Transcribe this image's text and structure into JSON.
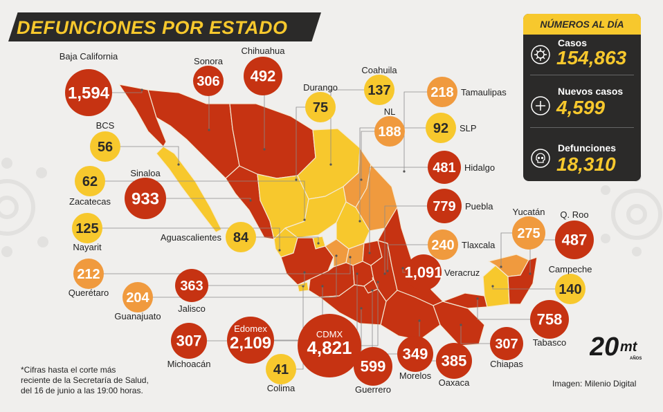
{
  "title": "DEFUNCIONES POR ESTADO",
  "panel": {
    "title": "NÚMEROS AL DÍA",
    "stats": [
      {
        "label": "Casos",
        "value": "154,863",
        "icon": "virus-icon"
      },
      {
        "label": "Nuevos casos",
        "value": "4,599",
        "icon": "plus-circle-icon"
      },
      {
        "label": "Defunciones",
        "value": "18,310",
        "icon": "skull-icon"
      }
    ]
  },
  "footnote": {
    "line1": "*Cifras hasta el corte más",
    "line2": "reciente de la Secretaría de Salud,",
    "line3": "del 16 de junio a las 19:00 horas."
  },
  "credit": "Imagen: Milenio Digital",
  "logo": {
    "number": "20",
    "brand": "mt",
    "sub": "AÑOS"
  },
  "colors": {
    "high": "#c63312",
    "medium": "#f09a3e",
    "low": "#f7c82d",
    "dark": "#2b2a29",
    "background": "#f0efed"
  },
  "chart_data": {
    "type": "bubble-map",
    "title": "DEFUNCIONES POR ESTADO",
    "categories": [
      "Baja California",
      "Sonora",
      "Chihuahua",
      "Durango",
      "Coahuila",
      "Tamaulipas",
      "NL",
      "SLP",
      "Hidalgo",
      "Puebla",
      "Tlaxcala",
      "Veracruz",
      "Yucatán",
      "Q. Roo",
      "Campeche",
      "Tabasco",
      "Chiapas",
      "Oaxaca",
      "Morelos",
      "Guerrero",
      "CDMX",
      "Colima",
      "Edomex",
      "Michoacán",
      "Jalisco",
      "Guanajuato",
      "Querétaro",
      "Nayarit",
      "Zacatecas",
      "Aguascalientes",
      "Sinaloa",
      "BCS"
    ],
    "values": [
      1594,
      306,
      492,
      75,
      137,
      218,
      188,
      92,
      481,
      779,
      240,
      1091,
      275,
      487,
      140,
      758,
      307,
      385,
      349,
      599,
      4821,
      41,
      2109,
      307,
      363,
      204,
      212,
      125,
      62,
      84,
      933,
      56
    ],
    "display_values": [
      "1,594",
      "306",
      "492",
      "75",
      "137",
      "218",
      "188",
      "92",
      "481",
      "779",
      "240",
      "1,091",
      "275",
      "487",
      "140",
      "758",
      "307",
      "385",
      "349",
      "599",
      "4,821",
      "41",
      "2,109",
      "307",
      "363",
      "204",
      "212",
      "125",
      "62",
      "84",
      "933",
      "56"
    ],
    "bubble_labels": {
      "CDMX": "CDMX",
      "Edomex": "Edomex"
    },
    "color_scale": [
      {
        "max": 150,
        "color": "#f7c82d"
      },
      {
        "max": 300,
        "color": "#f09a3e"
      },
      {
        "max": 100000,
        "color": "#c63312"
      }
    ]
  }
}
